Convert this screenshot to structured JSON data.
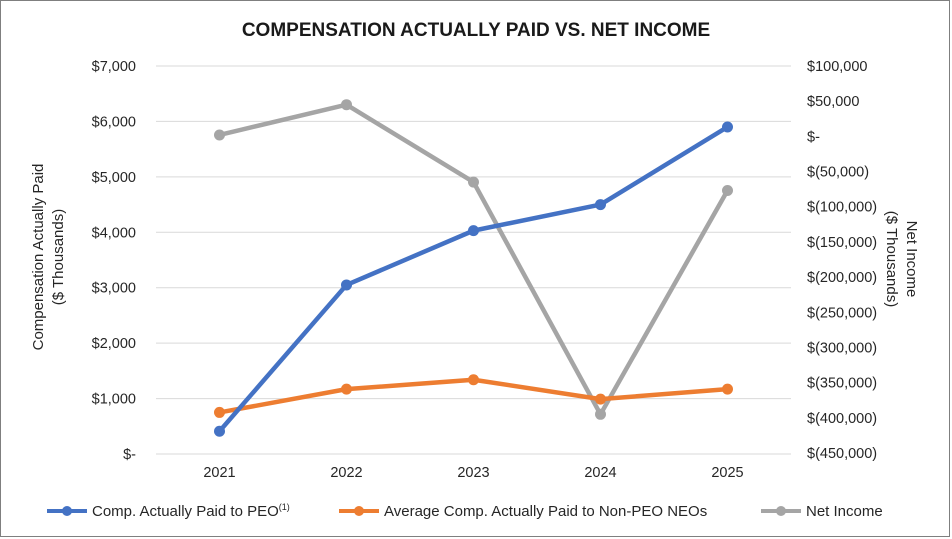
{
  "chart_data": {
    "type": "line",
    "title": "COMPENSATION ACTUALLY PAID VS. NET INCOME",
    "categories": [
      "2021",
      "2022",
      "2023",
      "2024",
      "2025"
    ],
    "ylabel_left_line1": "Compensation Actually Paid",
    "ylabel_left_line2": "($ Thousands)",
    "ylabel_right_line1": "Net Income",
    "ylabel_right_line2": "($ Thousands)",
    "ylim_left": [
      0,
      7000
    ],
    "ylim_right": [
      -450000,
      100000
    ],
    "left_ticks": [
      {
        "value": 0,
        "label": "$-"
      },
      {
        "value": 1000,
        "label": "$1,000"
      },
      {
        "value": 2000,
        "label": "$2,000"
      },
      {
        "value": 3000,
        "label": "$3,000"
      },
      {
        "value": 4000,
        "label": "$4,000"
      },
      {
        "value": 5000,
        "label": "$5,000"
      },
      {
        "value": 6000,
        "label": "$6,000"
      },
      {
        "value": 7000,
        "label": "$7,000"
      }
    ],
    "right_ticks": [
      {
        "value": 100000,
        "label": "$100,000"
      },
      {
        "value": 50000,
        "label": "$50,000"
      },
      {
        "value": 0,
        "label": "$-"
      },
      {
        "value": -50000,
        "label": "$(50,000)"
      },
      {
        "value": -100000,
        "label": "$(100,000)"
      },
      {
        "value": -150000,
        "label": "$(150,000)"
      },
      {
        "value": -200000,
        "label": "$(200,000)"
      },
      {
        "value": -250000,
        "label": "$(250,000)"
      },
      {
        "value": -300000,
        "label": "$(300,000)"
      },
      {
        "value": -350000,
        "label": "$(350,000)"
      },
      {
        "value": -400000,
        "label": "$(400,000)"
      },
      {
        "value": -450000,
        "label": "$(450,000)"
      }
    ],
    "series": [
      {
        "name": "Comp. Actually Paid to PEO",
        "superscript": "(1)",
        "axis": "left",
        "color": "#4472c4",
        "values": [
          410,
          3050,
          4030,
          4500,
          5900
        ]
      },
      {
        "name": "Average Comp. Actually Paid to Non-PEO NEOs",
        "superscript": "",
        "axis": "left",
        "color": "#ed7d31",
        "values": [
          750,
          1170,
          1340,
          990,
          1170
        ]
      },
      {
        "name": "Net Income",
        "superscript": "",
        "axis": "right",
        "color": "#a5a5a5",
        "values": [
          2000,
          45000,
          -65000,
          -395000,
          -77000
        ]
      }
    ],
    "legend_position": "bottom",
    "grid": true
  }
}
